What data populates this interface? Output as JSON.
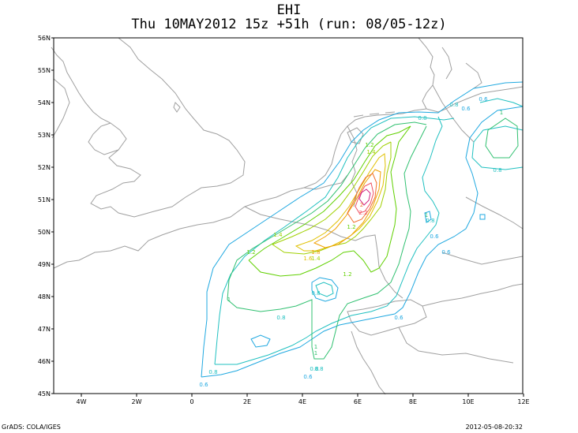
{
  "header": {
    "title": "EHI",
    "subtitle": "Thu 10MAY2012 15z  +51h (run: 08/05-12z)"
  },
  "map": {
    "lat_labels": [
      "56N",
      "55N",
      "54N",
      "53N",
      "52N",
      "51N",
      "50N",
      "49N",
      "48N",
      "47N",
      "46N",
      "45N"
    ],
    "lon_labels": [
      "4W",
      "2W",
      "0",
      "2E",
      "4E",
      "6E",
      "8E",
      "10E",
      "12E"
    ],
    "colors": {
      "coast": "#a0a0a0",
      "c06": "#1fa8e0",
      "c08": "#20c0c0",
      "c1": "#30c070",
      "c12": "#60d000",
      "c14": "#a0d000",
      "c16": "#e0c000",
      "c18": "#f0a000",
      "c2": "#f07030",
      "c22": "#f05060",
      "c24": "#d02080"
    },
    "contour_labels": [
      "0.6",
      "0.8",
      "1",
      "1.2",
      "1.4",
      "1.6",
      "1.8",
      "2",
      "2.2",
      "0.6",
      "0.8",
      "1",
      "1.2",
      "0.8",
      "0.6",
      "0.6",
      "0.8",
      "1",
      "0.8",
      "0.6",
      "0.8",
      "0.6",
      "1.2",
      "1.4",
      "0.8",
      "0.8",
      "1",
      "1.2",
      "1.4",
      "0.6",
      "0.8",
      "1"
    ]
  },
  "footer": {
    "credit": "GrADS: COLA/IGES",
    "timestamp": "2012-05-08-20:32"
  }
}
